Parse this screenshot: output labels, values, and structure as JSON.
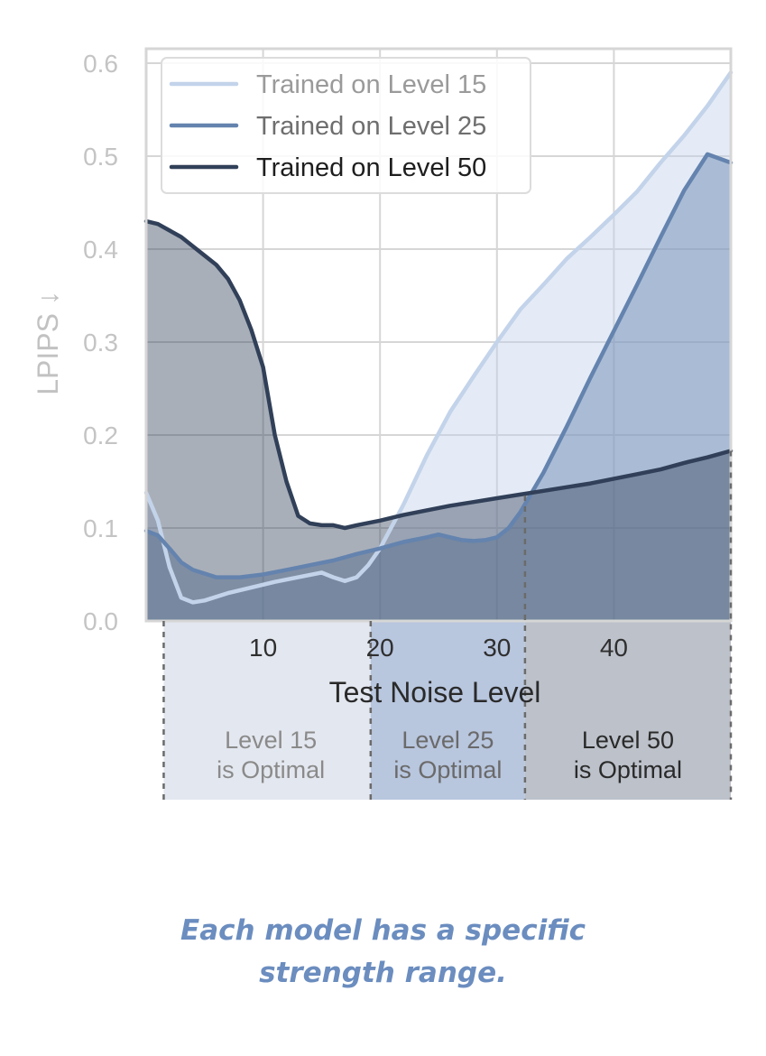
{
  "chart_data": {
    "type": "line",
    "xlabel": "Test Noise Level",
    "ylabel": "LPIPS ↓",
    "xlim": [
      0,
      50
    ],
    "ylim": [
      0,
      0.6
    ],
    "xticks": [
      "10",
      "20",
      "30",
      "40"
    ],
    "yticks": [
      "0.0",
      "0.1",
      "0.2",
      "0.3",
      "0.4",
      "0.5",
      "0.6"
    ],
    "grid": true,
    "legend_position": "top-left",
    "series": [
      {
        "name": "Trained on Level 15",
        "color": "#c3d3ea",
        "x": [
          0,
          1,
          2,
          3,
          4,
          5,
          7,
          9,
          11,
          13,
          15,
          16,
          17,
          18,
          19,
          20,
          22,
          24,
          26,
          28,
          30,
          32,
          34,
          36,
          38,
          40,
          42,
          44,
          46,
          48,
          50
        ],
        "y": [
          0.138,
          0.108,
          0.058,
          0.025,
          0.02,
          0.022,
          0.03,
          0.036,
          0.042,
          0.047,
          0.052,
          0.047,
          0.043,
          0.047,
          0.06,
          0.078,
          0.125,
          0.178,
          0.225,
          0.263,
          0.3,
          0.335,
          0.362,
          0.39,
          0.413,
          0.437,
          0.462,
          0.493,
          0.522,
          0.554,
          0.59
        ]
      },
      {
        "name": "Trained on Level 25",
        "color": "#6483ae",
        "x": [
          0,
          1,
          2,
          3,
          4,
          6,
          8,
          10,
          12,
          14,
          16,
          18,
          20,
          22,
          24,
          25,
          26,
          27,
          28,
          29,
          30,
          31,
          32,
          34,
          36,
          38,
          40,
          42,
          44,
          46,
          48,
          50
        ],
        "y": [
          0.097,
          0.092,
          0.078,
          0.063,
          0.055,
          0.047,
          0.047,
          0.05,
          0.055,
          0.06,
          0.065,
          0.072,
          0.078,
          0.085,
          0.09,
          0.093,
          0.09,
          0.087,
          0.086,
          0.087,
          0.09,
          0.1,
          0.117,
          0.16,
          0.21,
          0.262,
          0.312,
          0.362,
          0.413,
          0.463,
          0.502,
          0.493
        ]
      },
      {
        "name": "Trained on Level 50",
        "color": "#314058",
        "x": [
          0,
          1,
          2,
          3,
          4,
          5,
          6,
          7,
          8,
          9,
          10,
          11,
          12,
          13,
          14,
          15,
          16,
          17,
          18,
          20,
          22,
          24,
          26,
          28,
          30,
          32,
          34,
          36,
          38,
          40,
          42,
          44,
          46,
          48,
          50
        ],
        "y": [
          0.43,
          0.427,
          0.42,
          0.413,
          0.403,
          0.393,
          0.383,
          0.368,
          0.345,
          0.313,
          0.273,
          0.2,
          0.15,
          0.113,
          0.105,
          0.103,
          0.103,
          0.1,
          0.103,
          0.108,
          0.114,
          0.119,
          0.124,
          0.128,
          0.132,
          0.136,
          0.14,
          0.144,
          0.148,
          0.153,
          0.158,
          0.163,
          0.17,
          0.176,
          0.183
        ]
      }
    ],
    "regions": [
      {
        "from": 1.5,
        "to": 19.2,
        "line1": "Level 15",
        "line2": "is Optimal",
        "color": "#e3e7ef",
        "text_color": "#8a8a8a"
      },
      {
        "from": 19.2,
        "to": 32.4,
        "line1": "Level 25",
        "line2": "is Optimal",
        "color": "#b8c6de",
        "text_color": "#6a6a6a"
      },
      {
        "from": 32.4,
        "to": 50,
        "line1": "Level 50",
        "line2": "is Optimal",
        "color": "#bcc1ca",
        "text_color": "#2a2a2a"
      }
    ]
  },
  "caption": {
    "line1": "Each model has a specific",
    "line2": "strength range."
  }
}
